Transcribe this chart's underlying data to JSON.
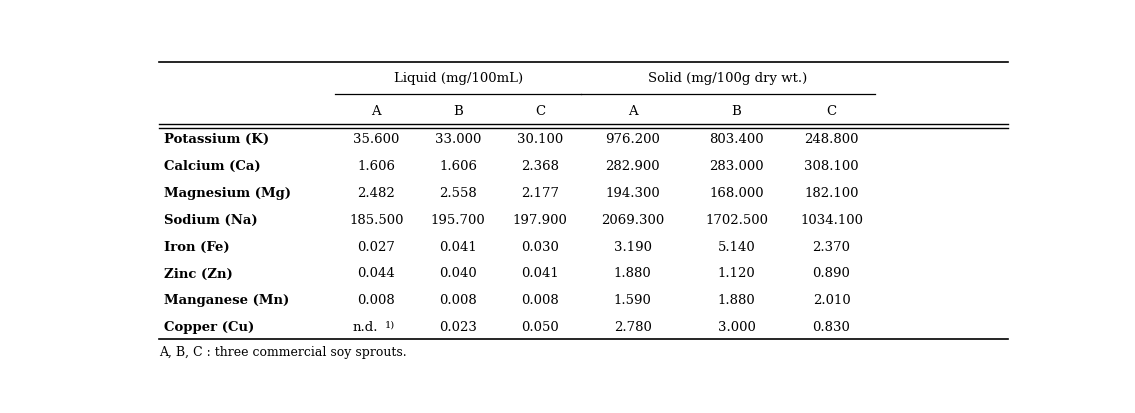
{
  "header_group1": "Liquid (mg/100mL)",
  "header_group2": "Solid (mg/100g dry wt.)",
  "sub_headers": [
    "A",
    "B",
    "C",
    "A",
    "B",
    "C"
  ],
  "row_labels": [
    "Potassium (K)",
    "Calcium (Ca)",
    "Magnesium (Mg)",
    "Sodium (Na)",
    "Iron (Fe)",
    "Zinc (Zn)",
    "Manganese (Mn)",
    "Copper (Cu)"
  ],
  "data": [
    [
      "35.600",
      "33.000",
      "30.100",
      "976.200",
      "803.400",
      "248.800"
    ],
    [
      "1.606",
      "1.606",
      "2.368",
      "282.900",
      "283.000",
      "308.100"
    ],
    [
      "2.482",
      "2.558",
      "2.177",
      "194.300",
      "168.000",
      "182.100"
    ],
    [
      "185.500",
      "195.700",
      "197.900",
      "2069.300",
      "1702.500",
      "1034.100"
    ],
    [
      "0.027",
      "0.041",
      "0.030",
      "3.190",
      "5.140",
      "2.370"
    ],
    [
      "0.044",
      "0.040",
      "0.041",
      "1.880",
      "1.120",
      "0.890"
    ],
    [
      "0.008",
      "0.008",
      "0.008",
      "1.590",
      "1.880",
      "2.010"
    ],
    [
      "n.d.",
      "0.023",
      "0.050",
      "2.780",
      "3.000",
      "0.830"
    ]
  ],
  "footnote": "A, B, C : three commercial soy sprouts.",
  "background_color": "#ffffff",
  "text_color": "#000000",
  "font_size": 9.5
}
